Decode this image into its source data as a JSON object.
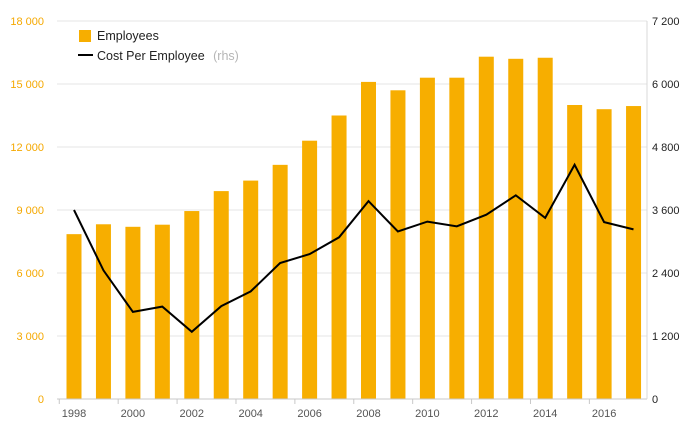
{
  "chart_data": {
    "type": "bar",
    "categories": [
      "1998",
      "1999",
      "2000",
      "2001",
      "2002",
      "2003",
      "2004",
      "2005",
      "2006",
      "2007",
      "2008",
      "2009",
      "2010",
      "2011",
      "2012",
      "2013",
      "2014",
      "2015",
      "2016",
      "2017"
    ],
    "series": [
      {
        "name": "Employees",
        "type": "bar",
        "axis": "left",
        "color": "#f7ae00",
        "values": [
          7850,
          8320,
          8200,
          8300,
          8950,
          9900,
          10400,
          11150,
          12300,
          13500,
          15100,
          14700,
          15300,
          15300,
          16300,
          16200,
          16250,
          14000,
          13800,
          13950
        ]
      },
      {
        "name": "Cost Per Employee",
        "legend_note": "(rhs)",
        "type": "line",
        "axis": "right",
        "color": "#000000",
        "values": [
          3600,
          2450,
          1660,
          1760,
          1280,
          1770,
          2050,
          2590,
          2760,
          3080,
          3770,
          3190,
          3380,
          3290,
          3510,
          3880,
          3450,
          4460,
          3370,
          3230
        ]
      }
    ],
    "y_left": {
      "min": 0,
      "max": 18000,
      "ticks": [
        "0",
        "3 000",
        "6 000",
        "9 000",
        "12 000",
        "15 000",
        "18 000"
      ],
      "tick_values": [
        0,
        3000,
        6000,
        9000,
        12000,
        15000,
        18000
      ]
    },
    "y_right": {
      "min": 0,
      "max": 7200,
      "ticks": [
        "0",
        "1 200",
        "2 400",
        "3 600",
        "4 800",
        "6 000",
        "7 200"
      ],
      "tick_values": [
        0,
        1200,
        2400,
        3600,
        4800,
        6000,
        7200
      ]
    },
    "x_tick_labels": [
      "1998",
      "2000",
      "2002",
      "2004",
      "2006",
      "2008",
      "2010",
      "2012",
      "2014",
      "2016"
    ],
    "grid": true,
    "legend_position": "top-left",
    "title": "",
    "xlabel": "",
    "ylabel": ""
  }
}
